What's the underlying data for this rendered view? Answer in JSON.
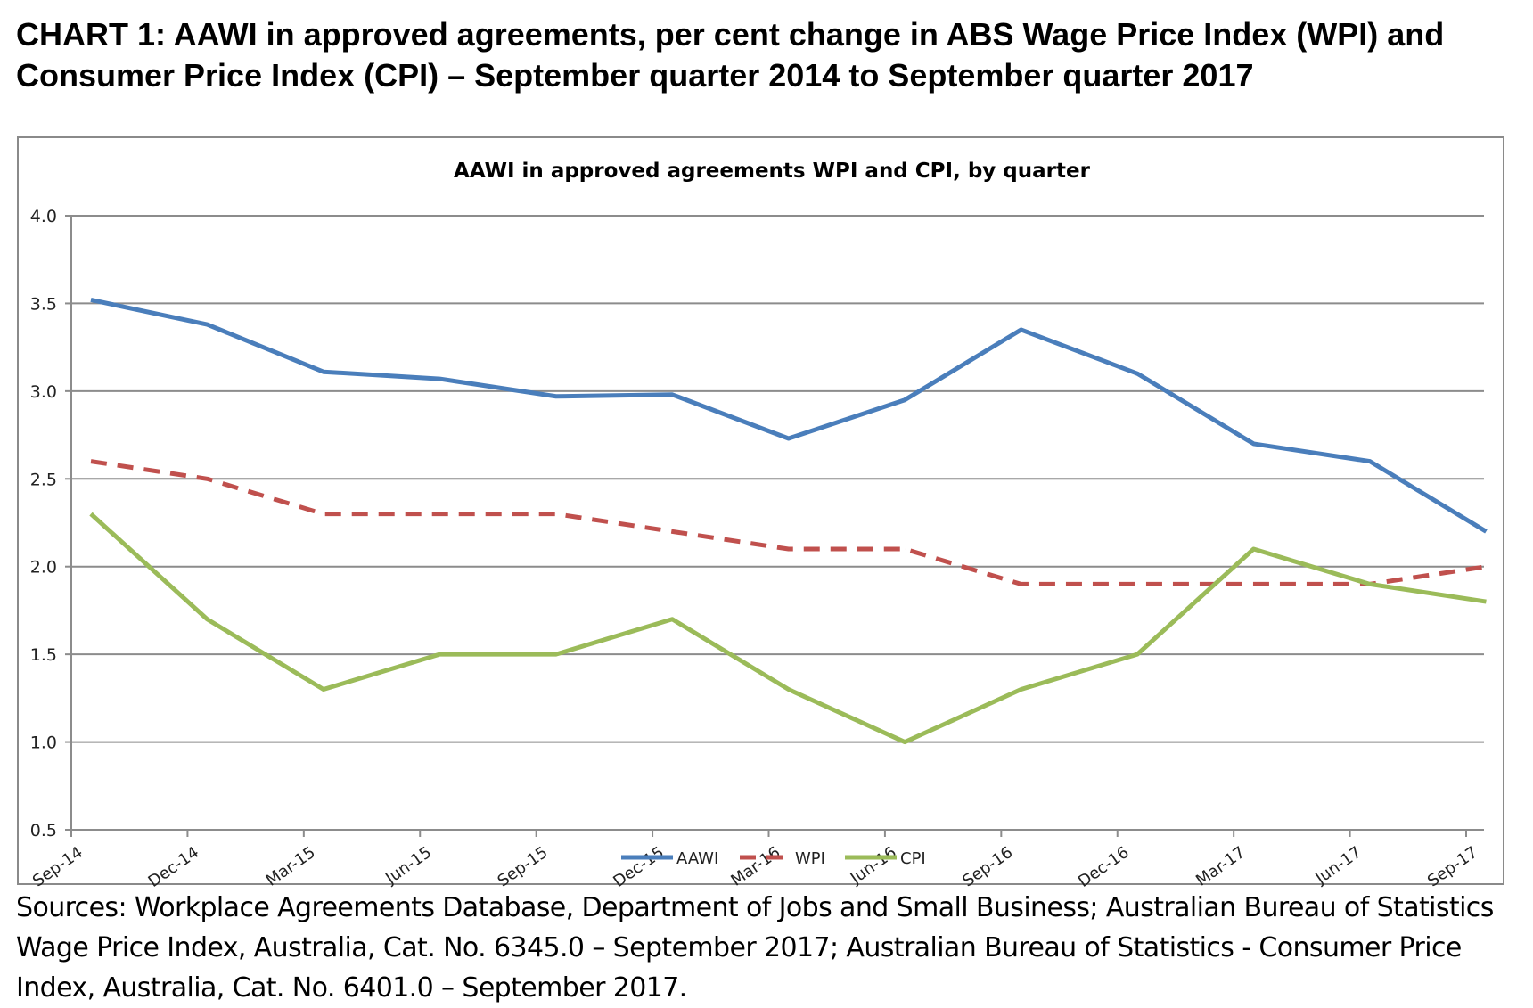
{
  "heading": "CHART 1: AAWI in approved agreements, per cent change in ABS Wage Price Index (WPI) and Consumer Price Index (CPI) – September quarter 2014 to September quarter 2017",
  "sources": "Sources: Workplace Agreements Database, Department of Jobs and Small Business; Australian Bureau of Statistics Wage Price Index, Australia, Cat. No. 6345.0 – September 2017; Australian Bureau of Statistics - Consumer Price Index, Australia, Cat. No. 6401.0 – September 2017.",
  "chart_data": {
    "type": "line",
    "title": "AAWI in approved agreements WPI and CPI, by quarter",
    "categories": [
      "Sep-14",
      "Dec-14",
      "Mar-15",
      "Jun-15",
      "Sep-15",
      "Dec-15",
      "Mar-16",
      "Jun-16",
      "Sep-16",
      "Dec-16",
      "Mar-17",
      "Jun-17",
      "Sep-17"
    ],
    "ylim": [
      0.5,
      4.0
    ],
    "yticks": [
      "0.5",
      "1.0",
      "1.5",
      "2.0",
      "2.5",
      "3.0",
      "3.5",
      "4.0"
    ],
    "grid": true,
    "legend": "bottom",
    "series": [
      {
        "name": "AAWI",
        "color": "#4a7ebb",
        "dash": false,
        "values": [
          3.52,
          3.38,
          3.11,
          3.07,
          2.97,
          2.98,
          2.73,
          2.95,
          3.35,
          3.1,
          2.7,
          2.6,
          2.2
        ]
      },
      {
        "name": "WPI",
        "color": "#c0504d",
        "dash": true,
        "values": [
          2.6,
          2.5,
          2.3,
          2.3,
          2.3,
          2.2,
          2.1,
          2.1,
          1.9,
          1.9,
          1.9,
          1.9,
          2.0
        ]
      },
      {
        "name": "CPI",
        "color": "#9bbb59",
        "dash": false,
        "values": [
          2.3,
          1.7,
          1.3,
          1.5,
          1.5,
          1.7,
          1.3,
          1.0,
          1.3,
          1.5,
          2.1,
          1.9,
          1.8
        ]
      }
    ]
  }
}
